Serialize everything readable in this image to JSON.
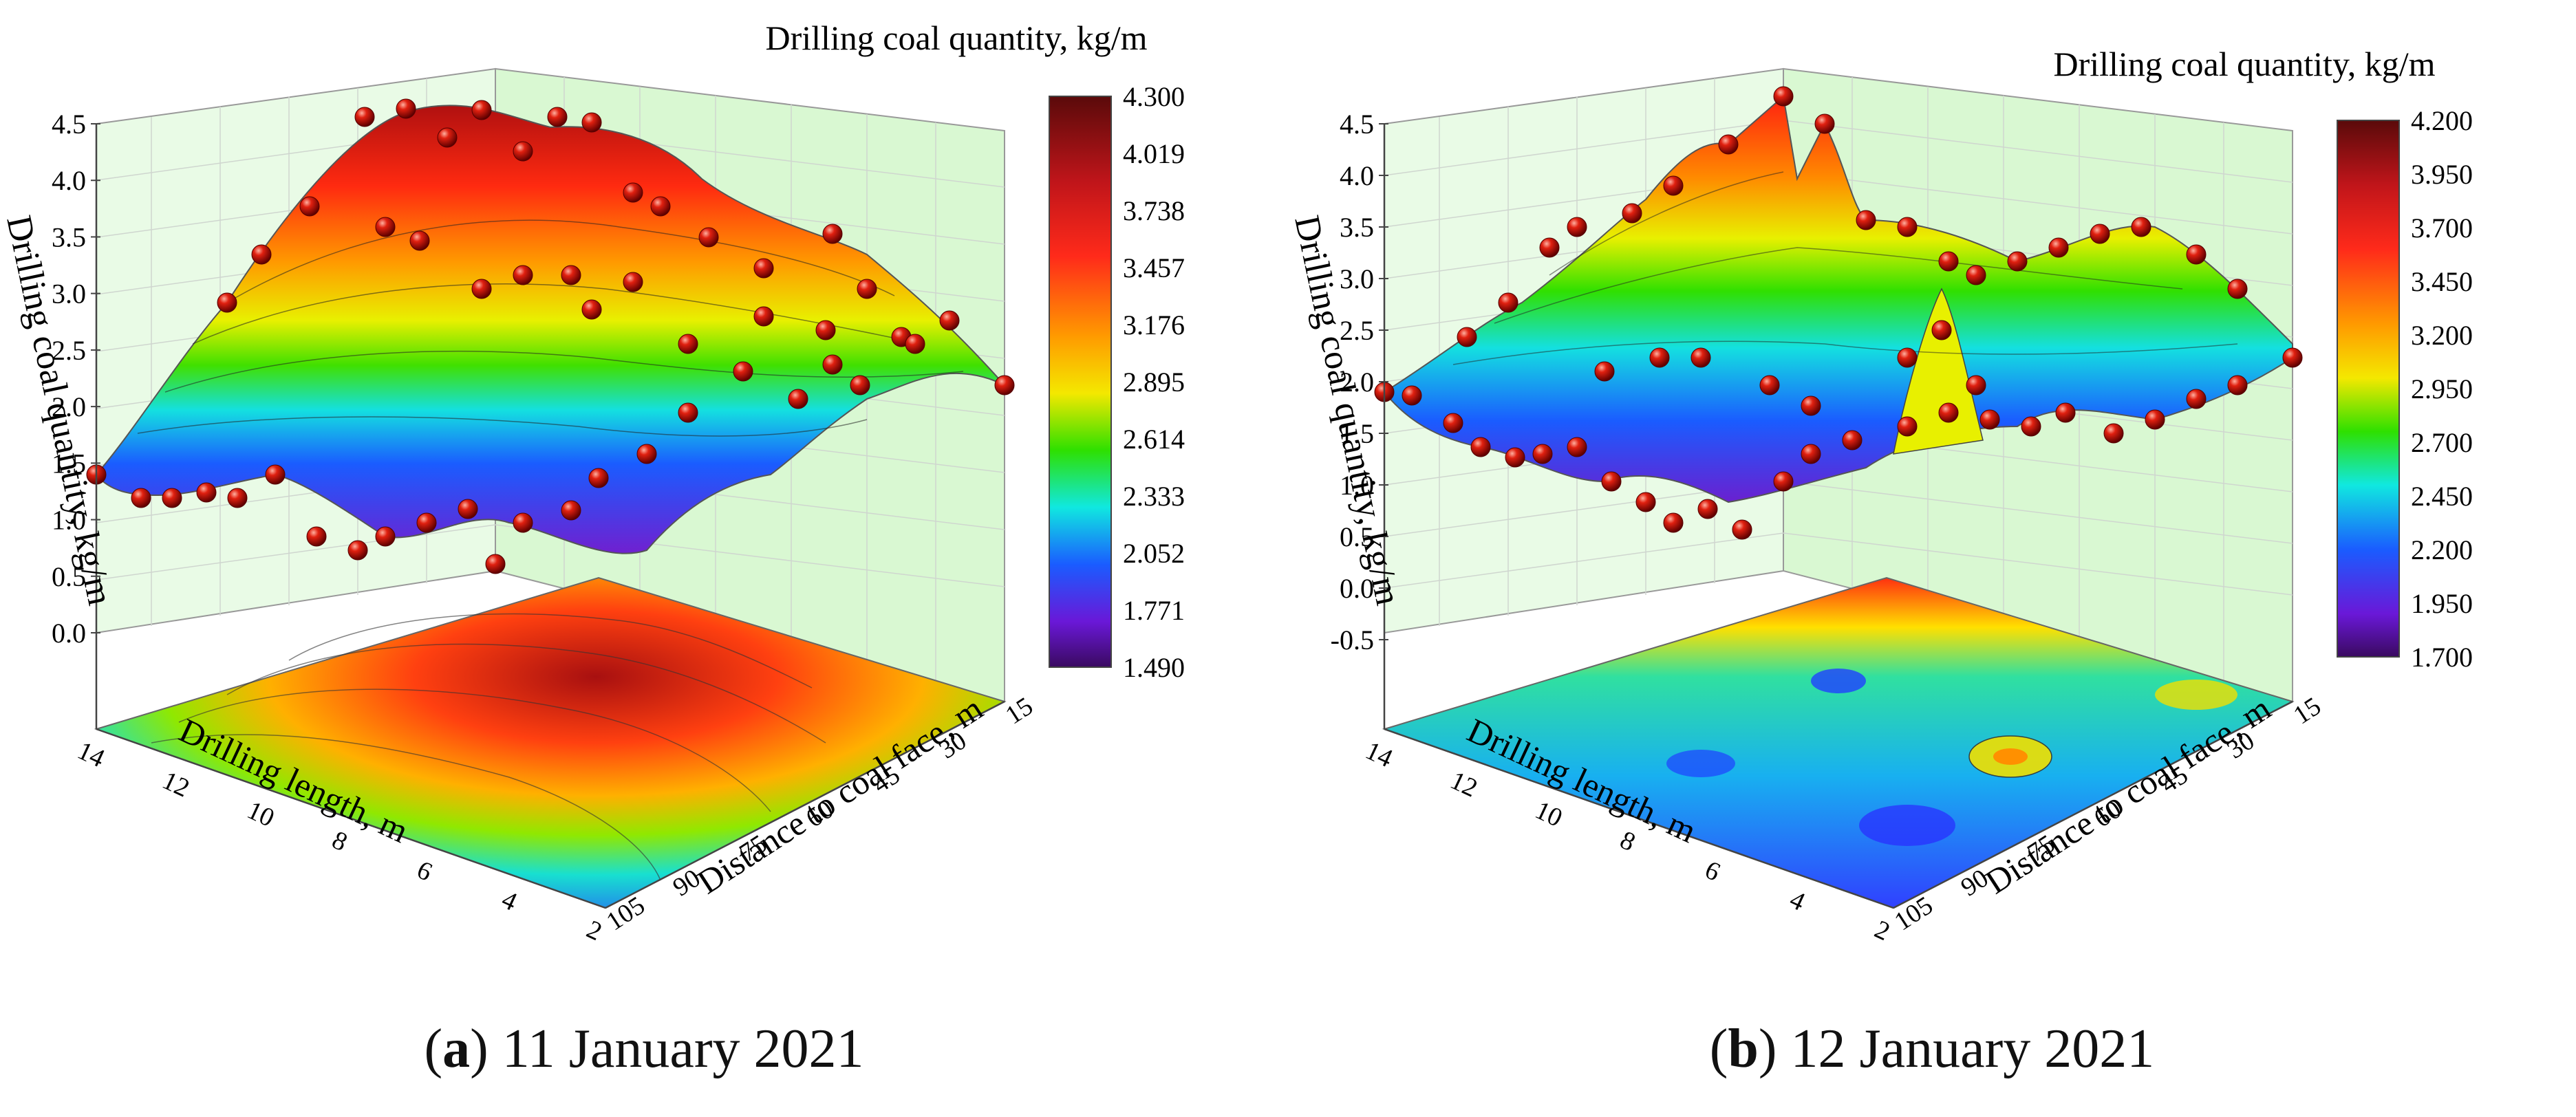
{
  "panels": [
    {
      "caption_letter": "a",
      "caption_text": "11 January 2021",
      "caption_open": "(",
      "caption_close": ")",
      "chart_data": {
        "type": "surface3d",
        "title": "Drilling coal quantity, kg/m",
        "zlabel": "Drilling coal quantity, kg/m",
        "xlabel": "Drilling length, m",
        "ylabel": "Distance to coal face, m",
        "z_ticks": [
          "4.5",
          "4.0",
          "3.5",
          "3.0",
          "2.5",
          "2.0",
          "1.5",
          "1.0",
          "0.5",
          "0.0"
        ],
        "x_ticks": [
          "14",
          "12",
          "10",
          "8",
          "6",
          "4",
          "2"
        ],
        "y_ticks": [
          "15",
          "30",
          "45",
          "60",
          "75",
          "90",
          "105"
        ],
        "colorbar_ticks": [
          "4.300",
          "4.019",
          "3.738",
          "3.457",
          "3.176",
          "2.895",
          "2.614",
          "2.333",
          "2.052",
          "1.771",
          "1.490"
        ],
        "zlim": [
          0.0,
          4.5
        ],
        "colorbar_range": [
          1.49,
          4.3
        ]
      }
    },
    {
      "caption_letter": "b",
      "caption_text": "12 January 2021",
      "caption_open": "(",
      "caption_close": ")",
      "chart_data": {
        "type": "surface3d",
        "title": "Drilling coal quantity, kg/m",
        "zlabel": "Drilling coal quantity, kg/m",
        "xlabel": "Drilling length, m",
        "ylabel": "Distance to coal face, m",
        "z_ticks": [
          "4.5",
          "4.0",
          "3.5",
          "3.0",
          "2.5",
          "2.0",
          "1.5",
          "1.0",
          "0.5",
          "0.0",
          "-0.5"
        ],
        "x_ticks": [
          "14",
          "12",
          "10",
          "8",
          "6",
          "4",
          "2"
        ],
        "y_ticks": [
          "15",
          "30",
          "45",
          "60",
          "75",
          "90",
          "105"
        ],
        "colorbar_ticks": [
          "4.200",
          "3.950",
          "3.700",
          "3.450",
          "3.200",
          "2.950",
          "2.700",
          "2.450",
          "2.200",
          "1.950",
          "1.700"
        ],
        "zlim": [
          -0.5,
          4.5
        ],
        "colorbar_range": [
          1.7,
          4.2
        ]
      }
    }
  ]
}
